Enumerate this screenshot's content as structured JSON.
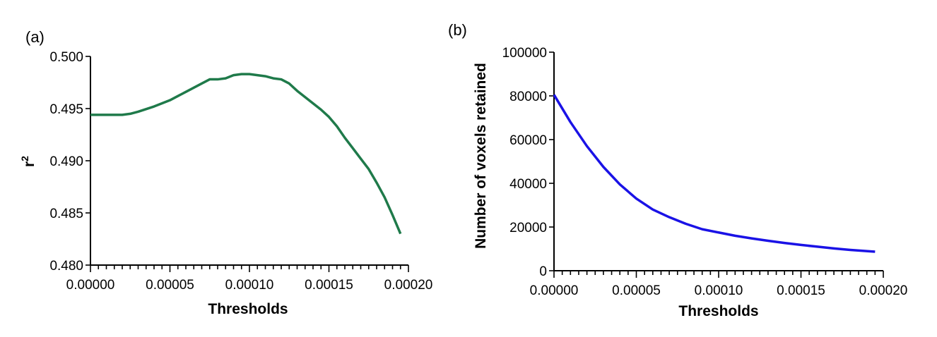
{
  "chart_data": [
    {
      "panel_label": "(a)",
      "type": "line",
      "xlabel": "Thresholds",
      "ylabel": "r",
      "ylabel_sup": "2",
      "xlim": [
        0,
        0.0002
      ],
      "ylim": [
        0.48,
        0.5
      ],
      "xticks": [
        "0.00000",
        "0.00005",
        "0.00010",
        "0.00015",
        "0.00020"
      ],
      "xtick_values": [
        0,
        5e-05,
        0.0001,
        0.00015,
        0.0002
      ],
      "yticks": [
        "0.480",
        "0.485",
        "0.490",
        "0.495",
        "0.500"
      ],
      "ytick_values": [
        0.48,
        0.485,
        0.49,
        0.495,
        0.5
      ],
      "grid": false,
      "series": [
        {
          "color": "#1f7a4a",
          "x": [
            0,
            1e-05,
            2e-05,
            2.5e-05,
            3e-05,
            4e-05,
            5e-05,
            6e-05,
            7e-05,
            7.5e-05,
            8e-05,
            8.5e-05,
            9e-05,
            9.5e-05,
            0.0001,
            0.000105,
            0.00011,
            0.000115,
            0.00012,
            0.000125,
            0.00013,
            0.000135,
            0.00014,
            0.000145,
            0.00015,
            0.000155,
            0.00016,
            0.000165,
            0.00017,
            0.000175,
            0.00018,
            0.000185,
            0.00019,
            0.000195
          ],
          "y": [
            0.4944,
            0.4944,
            0.4944,
            0.4945,
            0.4947,
            0.4952,
            0.4958,
            0.4966,
            0.4974,
            0.4978,
            0.4978,
            0.4979,
            0.4982,
            0.4983,
            0.4983,
            0.4982,
            0.4981,
            0.4979,
            0.4978,
            0.4974,
            0.4967,
            0.4961,
            0.4955,
            0.4949,
            0.4942,
            0.4933,
            0.4922,
            0.4912,
            0.4902,
            0.4892,
            0.4879,
            0.4865,
            0.4848,
            0.483
          ]
        }
      ]
    },
    {
      "panel_label": "(b)",
      "type": "line",
      "xlabel": "Thresholds",
      "ylabel": "Number of voxels retained",
      "xlim": [
        0,
        0.0002
      ],
      "ylim": [
        0,
        100000
      ],
      "xticks": [
        "0.00000",
        "0.00005",
        "0.00010",
        "0.00015",
        "0.00020"
      ],
      "xtick_values": [
        0,
        5e-05,
        0.0001,
        0.00015,
        0.0002
      ],
      "yticks": [
        "0",
        "20000",
        "40000",
        "60000",
        "80000",
        "100000"
      ],
      "ytick_values": [
        0,
        20000,
        40000,
        60000,
        80000,
        100000
      ],
      "grid": false,
      "series": [
        {
          "color": "#1a12e6",
          "x": [
            0,
            1e-05,
            2e-05,
            3e-05,
            4e-05,
            5e-05,
            6e-05,
            7e-05,
            8e-05,
            9e-05,
            0.0001,
            0.00011,
            0.00012,
            0.00013,
            0.00014,
            0.00015,
            0.00016,
            0.00017,
            0.00018,
            0.000195
          ],
          "y": [
            80500,
            68000,
            57000,
            47500,
            39500,
            33000,
            28000,
            24500,
            21500,
            19000,
            17500,
            16000,
            14800,
            13700,
            12700,
            11800,
            11000,
            10200,
            9500,
            8700
          ]
        }
      ]
    }
  ]
}
